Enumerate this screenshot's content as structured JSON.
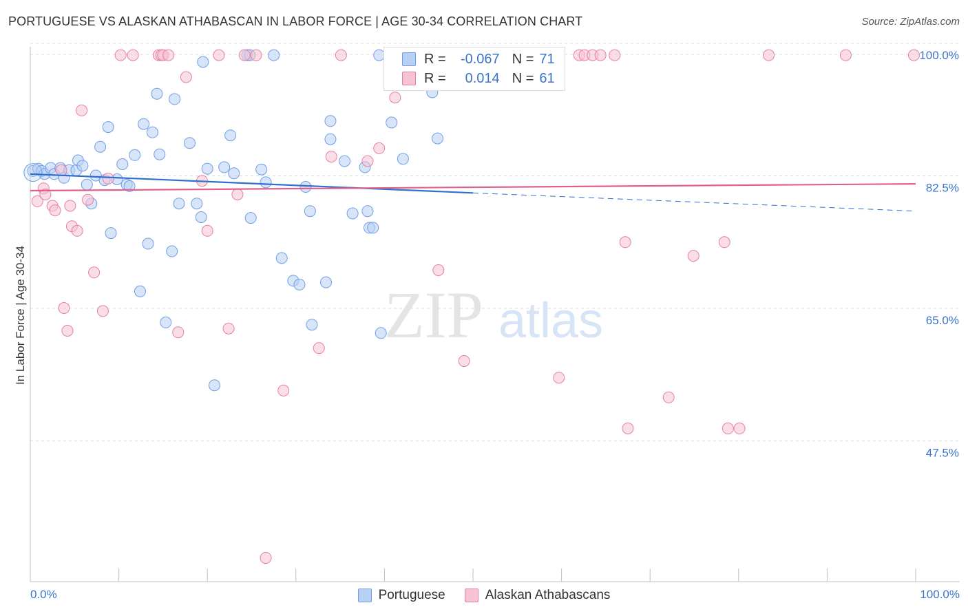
{
  "title": "PORTUGUESE VS ALASKAN ATHABASCAN IN LABOR FORCE | AGE 30-34 CORRELATION CHART",
  "source": "Source: ZipAtlas.com",
  "legend_stats": [
    {
      "r_label": "R =",
      "r_value": "-0.067",
      "n_label": "N =",
      "n_value": "71"
    },
    {
      "r_label": "R =",
      "r_value": "0.014",
      "n_label": "N =",
      "n_value": "61"
    }
  ],
  "watermark": {
    "zip": "ZIP",
    "atlas": "atlas"
  },
  "chart_data": {
    "type": "scatter",
    "xlabel": "",
    "ylabel": "In Labor Force | Age 30-34",
    "xlim": [
      0,
      100
    ],
    "ylim": [
      30,
      101
    ],
    "x_tick_labels": [
      "0.0%",
      "100.0%"
    ],
    "y_ticks": [
      {
        "value": 100,
        "label": "100.0%"
      },
      {
        "value": 82.5,
        "label": "82.5%"
      },
      {
        "value": 65,
        "label": "65.0%"
      },
      {
        "value": 47.5,
        "label": "47.5%"
      }
    ],
    "grid": "horizontal dashed",
    "legend_position": "bottom",
    "series": [
      {
        "name": "Portuguese",
        "color": "#6f9ee8",
        "fill": "#b8d0f2",
        "trend": {
          "x": [
            0,
            50
          ],
          "y": [
            84.2,
            81.7
          ]
        },
        "trend_extension": {
          "x": [
            50,
            100
          ],
          "y": [
            81.7,
            79.3
          ]
        },
        "points": [
          [
            0.3,
            84.6
          ],
          [
            0.9,
            84.9
          ],
          [
            1.3,
            84.6
          ],
          [
            1.6,
            84.2
          ],
          [
            2.3,
            85.0
          ],
          [
            2.7,
            84.2
          ],
          [
            3.4,
            85.0
          ],
          [
            3.8,
            83.7
          ],
          [
            4.4,
            84.7
          ],
          [
            5.2,
            84.7
          ],
          [
            5.4,
            86.0
          ],
          [
            5.9,
            85.3
          ],
          [
            6.4,
            82.8
          ],
          [
            6.9,
            80.3
          ],
          [
            7.4,
            84.0
          ],
          [
            7.9,
            87.8
          ],
          [
            8.4,
            83.4
          ],
          [
            8.8,
            90.4
          ],
          [
            9.1,
            76.4
          ],
          [
            9.8,
            83.5
          ],
          [
            10.4,
            85.5
          ],
          [
            10.9,
            82.8
          ],
          [
            11.2,
            82.6
          ],
          [
            11.8,
            86.7
          ],
          [
            12.4,
            68.7
          ],
          [
            12.8,
            90.8
          ],
          [
            13.3,
            75.0
          ],
          [
            13.8,
            89.7
          ],
          [
            14.3,
            94.8
          ],
          [
            14.6,
            86.8
          ],
          [
            15.3,
            64.6
          ],
          [
            16.0,
            74.0
          ],
          [
            16.3,
            94.1
          ],
          [
            16.8,
            80.3
          ],
          [
            18.0,
            88.3
          ],
          [
            18.8,
            80.3
          ],
          [
            19.3,
            78.5
          ],
          [
            19.5,
            99.0
          ],
          [
            20.0,
            84.9
          ],
          [
            20.8,
            56.3
          ],
          [
            21.9,
            85.1
          ],
          [
            22.6,
            89.3
          ],
          [
            23.0,
            84.3
          ],
          [
            24.5,
            99.9
          ],
          [
            24.8,
            99.9
          ],
          [
            24.9,
            78.4
          ],
          [
            26.1,
            84.8
          ],
          [
            26.6,
            83.1
          ],
          [
            27.5,
            99.9
          ],
          [
            28.4,
            73.1
          ],
          [
            29.7,
            70.1
          ],
          [
            30.4,
            69.6
          ],
          [
            31.1,
            82.5
          ],
          [
            31.6,
            79.3
          ],
          [
            31.8,
            64.3
          ],
          [
            33.4,
            69.9
          ],
          [
            33.9,
            88.8
          ],
          [
            33.9,
            91.2
          ],
          [
            35.5,
            85.9
          ],
          [
            36.4,
            79.0
          ],
          [
            37.8,
            85.1
          ],
          [
            38.1,
            79.3
          ],
          [
            38.3,
            77.1
          ],
          [
            38.7,
            77.1
          ],
          [
            39.6,
            63.2
          ],
          [
            39.4,
            99.9
          ],
          [
            40.8,
            91.0
          ],
          [
            42.1,
            86.2
          ],
          [
            45.4,
            95.0
          ],
          [
            46.0,
            88.9
          ],
          [
            44.6,
            99.9
          ]
        ]
      },
      {
        "name": "Alaskan Athabascans",
        "color": "#e77fa0",
        "fill": "#f6c3d3",
        "trend": {
          "x": [
            0,
            100
          ],
          "y": [
            82.0,
            82.9
          ]
        },
        "points": [
          [
            0.8,
            80.6
          ],
          [
            1.5,
            82.3
          ],
          [
            1.7,
            81.5
          ],
          [
            2.5,
            80.0
          ],
          [
            2.8,
            79.4
          ],
          [
            3.5,
            84.7
          ],
          [
            3.8,
            66.5
          ],
          [
            4.2,
            63.5
          ],
          [
            4.5,
            80.0
          ],
          [
            4.7,
            77.3
          ],
          [
            5.3,
            76.7
          ],
          [
            5.8,
            92.6
          ],
          [
            6.5,
            80.8
          ],
          [
            7.2,
            71.2
          ],
          [
            8.2,
            66.1
          ],
          [
            8.8,
            83.6
          ],
          [
            10.2,
            99.9
          ],
          [
            11.6,
            99.9
          ],
          [
            14.5,
            99.9
          ],
          [
            14.8,
            99.9
          ],
          [
            15.0,
            99.9
          ],
          [
            15.6,
            99.9
          ],
          [
            16.7,
            63.3
          ],
          [
            17.6,
            97.0
          ],
          [
            19.4,
            83.3
          ],
          [
            20.0,
            76.7
          ],
          [
            21.3,
            99.9
          ],
          [
            22.4,
            63.8
          ],
          [
            23.4,
            81.5
          ],
          [
            24.2,
            99.9
          ],
          [
            25.5,
            99.9
          ],
          [
            26.6,
            33.5
          ],
          [
            28.6,
            55.6
          ],
          [
            32.6,
            61.2
          ],
          [
            34.0,
            86.5
          ],
          [
            35.1,
            99.9
          ],
          [
            38.1,
            85.9
          ],
          [
            39.4,
            87.6
          ],
          [
            41.2,
            94.3
          ],
          [
            44.6,
            99.9
          ],
          [
            46.1,
            71.5
          ],
          [
            49.0,
            59.5
          ],
          [
            50.4,
            99.9
          ],
          [
            53.0,
            99.9
          ],
          [
            56.3,
            99.9
          ],
          [
            59.7,
            57.3
          ],
          [
            62.0,
            99.9
          ],
          [
            62.6,
            99.9
          ],
          [
            63.5,
            99.9
          ],
          [
            64.4,
            99.9
          ],
          [
            66.0,
            99.9
          ],
          [
            67.2,
            75.2
          ],
          [
            67.5,
            50.6
          ],
          [
            72.1,
            54.7
          ],
          [
            74.9,
            73.4
          ],
          [
            78.4,
            75.2
          ],
          [
            78.8,
            50.6
          ],
          [
            80.1,
            50.6
          ],
          [
            83.4,
            99.9
          ],
          [
            92.1,
            99.9
          ],
          [
            99.8,
            99.9
          ]
        ]
      }
    ]
  }
}
